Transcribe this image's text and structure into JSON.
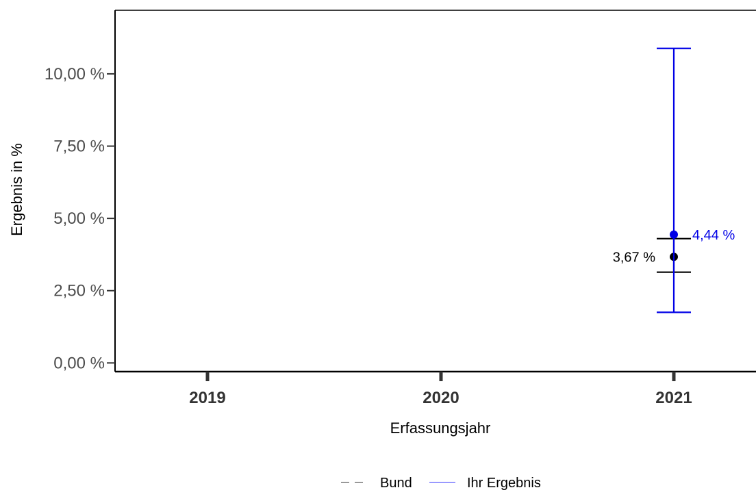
{
  "chart_data": {
    "type": "scatter",
    "xlabel": "Erfassungsjahr",
    "ylabel": "Ergebnis in %",
    "categories": [
      "2019",
      "2020",
      "2021"
    ],
    "ylim": [
      -0.3,
      12.2
    ],
    "y_ticks": [
      {
        "value": 0,
        "label": "0,00 %"
      },
      {
        "value": 2.5,
        "label": "2,50 %"
      },
      {
        "value": 5,
        "label": "5,00 %"
      },
      {
        "value": 7.5,
        "label": "7,50 %"
      },
      {
        "value": 10,
        "label": "10,00 %"
      }
    ],
    "grid": false,
    "legend_position": "bottom",
    "series": [
      {
        "name": "Bund",
        "color": "#000000",
        "legend_color": "#999999",
        "line_style": "dashed",
        "points": [
          {
            "x": "2021",
            "y": 3.67,
            "lower": 3.14,
            "upper": 4.3,
            "label": "3,67 %"
          }
        ]
      },
      {
        "name": "Ihr Ergebnis",
        "color": "#0000e6",
        "legend_color": "#9999ff",
        "line_style": "solid",
        "points": [
          {
            "x": "2021",
            "y": 4.44,
            "lower": 1.75,
            "upper": 10.88,
            "label": "4,44 %"
          }
        ]
      }
    ]
  }
}
